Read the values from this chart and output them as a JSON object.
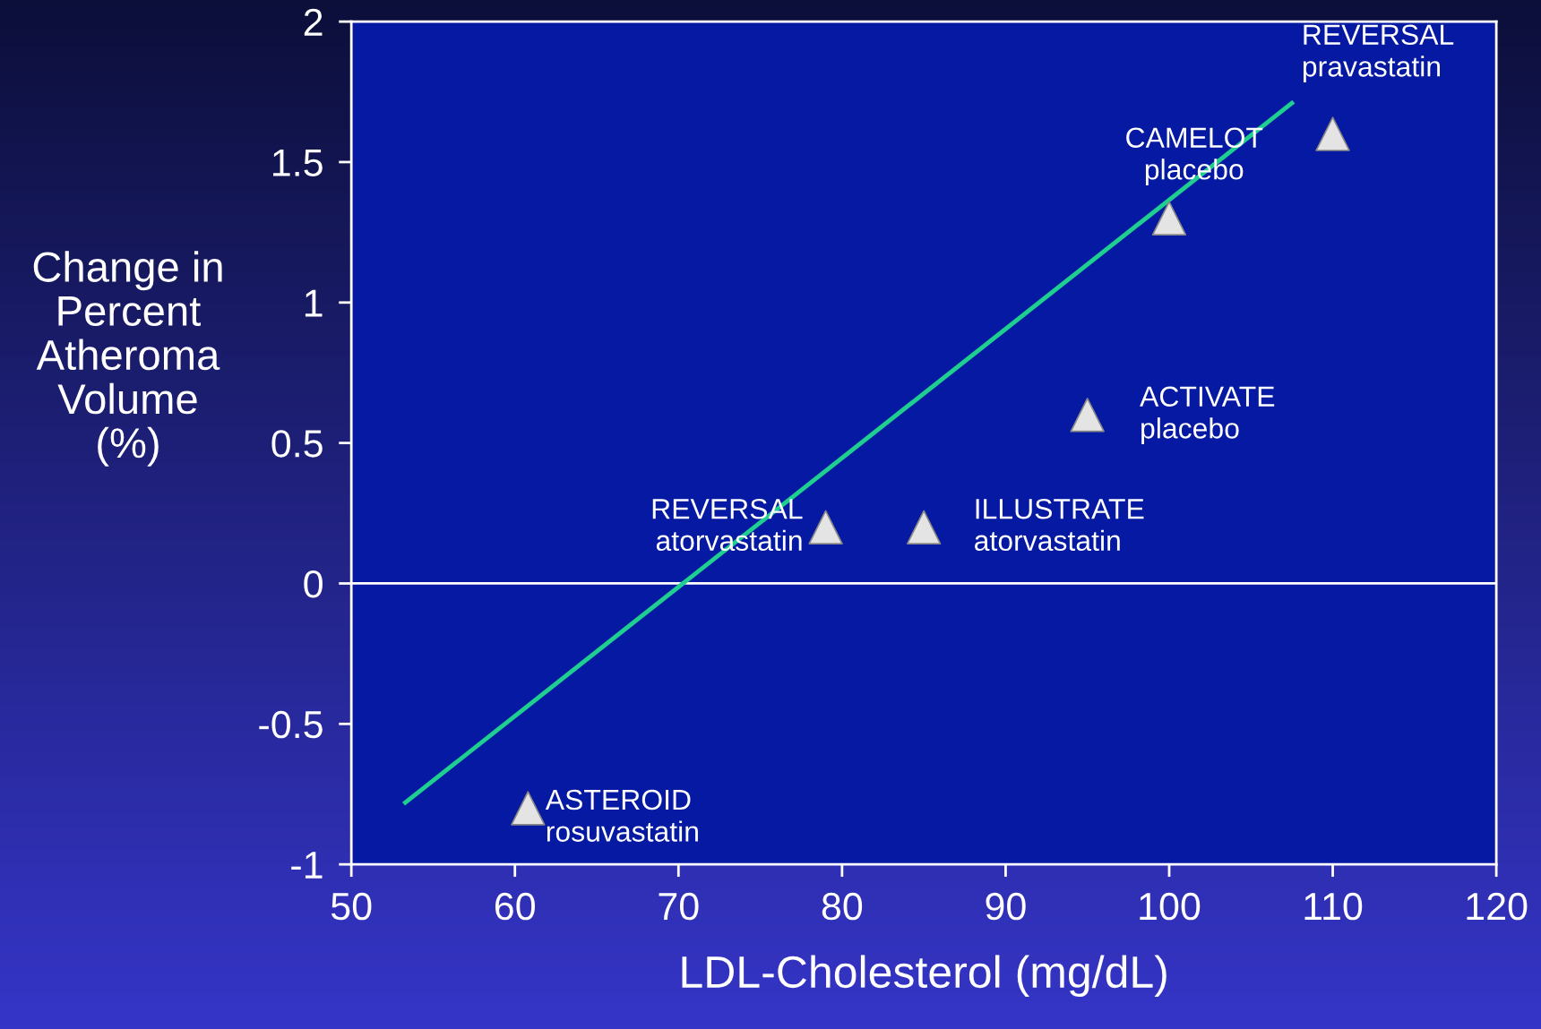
{
  "chart_data": {
    "type": "scatter",
    "xlabel": "LDL-Cholesterol (mg/dL)",
    "ylabel": "Change in\nPercent\nAtheroma\nVolume\n(%)",
    "xlim": [
      50,
      120
    ],
    "xticks": [
      50,
      60,
      70,
      80,
      90,
      100,
      110,
      120
    ],
    "ylim": [
      -1,
      2
    ],
    "yticks": [
      -1,
      -0.5,
      0,
      0.5,
      1,
      1.5,
      2
    ],
    "grid": false,
    "legend": false,
    "marker": "triangle",
    "series": [
      {
        "color": "#e4e4e4",
        "x": [
          60.8,
          79,
          85,
          95,
          100,
          110
        ],
        "values": [
          -0.8,
          0.2,
          0.2,
          0.6,
          1.3,
          1.6
        ]
      },
      {
        "type": "line",
        "marker": "none",
        "color": "#1ecf8f",
        "x": [
          53.3,
          107.5
        ],
        "values": [
          -0.78,
          1.71
        ]
      }
    ],
    "ref_lines": [
      {
        "axis": "y",
        "value": 0,
        "color": "#ffffff"
      }
    ],
    "annotations": [
      {
        "text": "ASTEROID\nrosuvastatin",
        "x": 60.8,
        "y": -0.8
      },
      {
        "text": "REVERSAL\natorvastatin",
        "x": 79,
        "y": 0.2
      },
      {
        "text": "ILLUSTRATE\natorvastatin",
        "x": 85,
        "y": 0.2
      },
      {
        "text": "ACTIVATE\nplacebo",
        "x": 95,
        "y": 0.6
      },
      {
        "text": "CAMELOT\nplacebo",
        "x": 100,
        "y": 1.3
      },
      {
        "text": "REVERSAL\npravastatin",
        "x": 110,
        "y": 1.6
      }
    ]
  }
}
